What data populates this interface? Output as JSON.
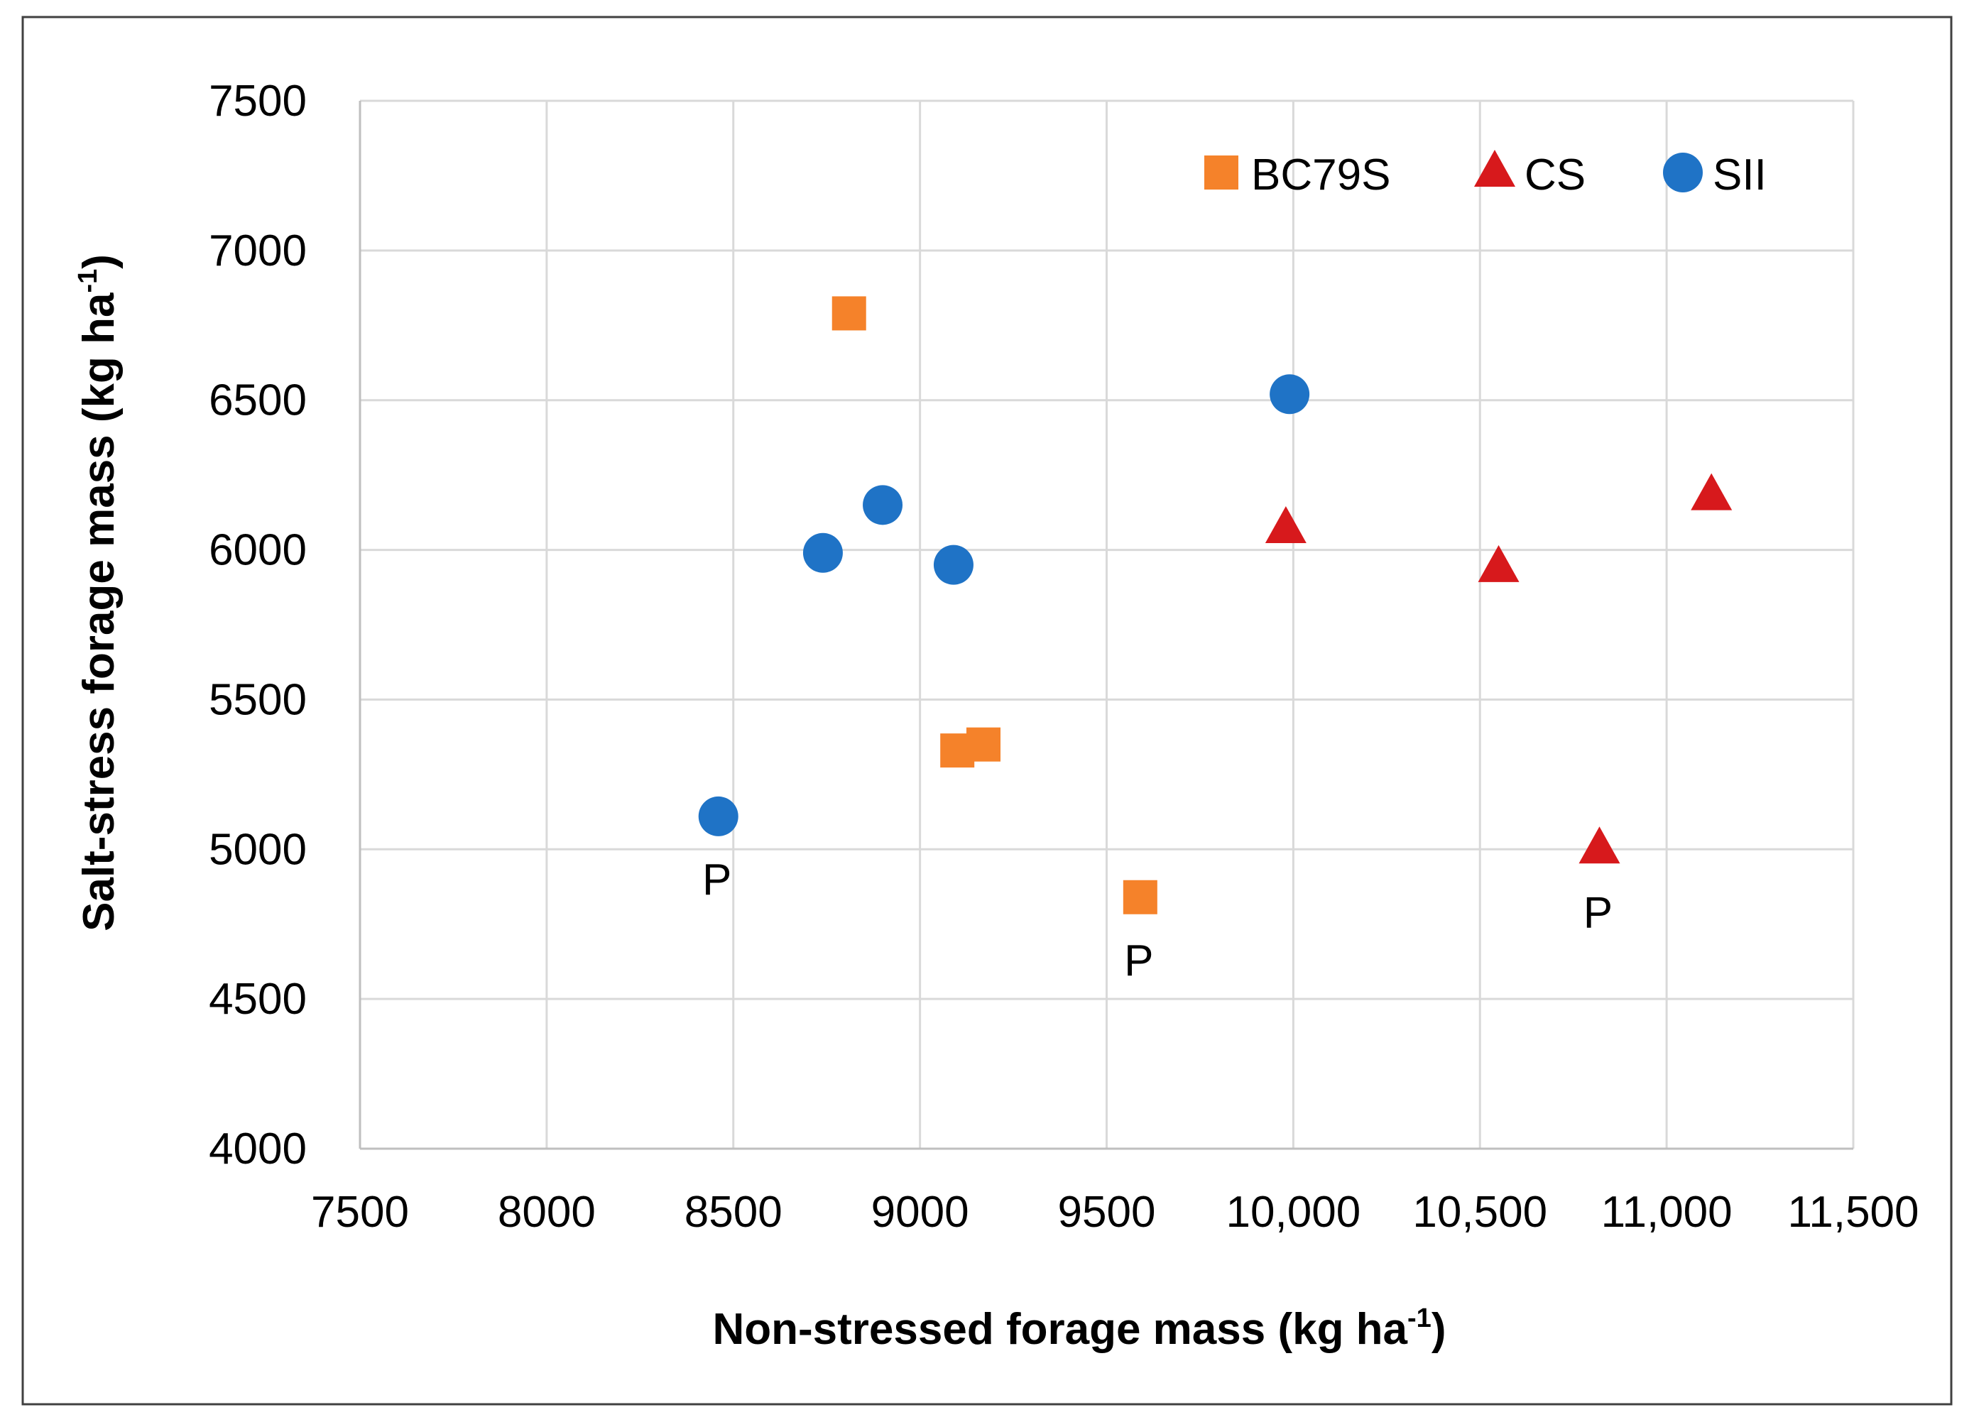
{
  "chart_data": {
    "type": "scatter",
    "title": "",
    "xlabel": {
      "text": "Non-stressed forage mass (kg ha",
      "sup": "-1",
      "suffix": ")"
    },
    "ylabel": {
      "text": "Salt-stress forage mass (kg ha",
      "sup": "-1",
      "suffix": ")"
    },
    "xlim": [
      7500,
      11500
    ],
    "ylim": [
      4000,
      7500
    ],
    "x_ticks": [
      {
        "value": 7500,
        "label": "7500"
      },
      {
        "value": 8000,
        "label": "8000"
      },
      {
        "value": 8500,
        "label": "8500"
      },
      {
        "value": 9000,
        "label": "9000"
      },
      {
        "value": 9500,
        "label": "9500"
      },
      {
        "value": 10000,
        "label": "10,000"
      },
      {
        "value": 10500,
        "label": "10,500"
      },
      {
        "value": 11000,
        "label": "11,000"
      },
      {
        "value": 11500,
        "label": "11,500"
      }
    ],
    "y_ticks": [
      {
        "value": 4000,
        "label": "4000"
      },
      {
        "value": 4500,
        "label": "4500"
      },
      {
        "value": 5000,
        "label": "5000"
      },
      {
        "value": 5500,
        "label": "5500"
      },
      {
        "value": 6000,
        "label": "6000"
      },
      {
        "value": 6500,
        "label": "6500"
      },
      {
        "value": 7000,
        "label": "7000"
      },
      {
        "value": 7500,
        "label": "7500"
      }
    ],
    "grid": true,
    "legend_position": "top-right",
    "series": [
      {
        "name": "BC79S",
        "marker": "square",
        "color": "#F5822A",
        "points": [
          {
            "x": 8810,
            "y": 6790
          },
          {
            "x": 9100,
            "y": 5330
          },
          {
            "x": 9170,
            "y": 5350
          },
          {
            "x": 9590,
            "y": 4840
          }
        ]
      },
      {
        "name": "CS",
        "marker": "triangle",
        "color": "#D7191C",
        "points": [
          {
            "x": 9980,
            "y": 6070
          },
          {
            "x": 10550,
            "y": 5940
          },
          {
            "x": 10820,
            "y": 5000
          },
          {
            "x": 11120,
            "y": 6180
          }
        ]
      },
      {
        "name": "SII",
        "marker": "circle",
        "color": "#1F73C6",
        "points": [
          {
            "x": 8460,
            "y": 5110
          },
          {
            "x": 8740,
            "y": 5990
          },
          {
            "x": 8900,
            "y": 6150
          },
          {
            "x": 9090,
            "y": 5950
          },
          {
            "x": 9990,
            "y": 6520
          }
        ]
      }
    ],
    "annotations": [
      {
        "text": "P",
        "series": "SII",
        "x": 8460,
        "y": 5110
      },
      {
        "text": "P",
        "series": "BC79S",
        "x": 9590,
        "y": 4840
      },
      {
        "text": "P",
        "series": "CS",
        "x": 10820,
        "y": 5000
      }
    ]
  },
  "colors": {
    "gridline": "#D9D9D9",
    "axis": "#BFBFBF",
    "frame": "#404040"
  }
}
